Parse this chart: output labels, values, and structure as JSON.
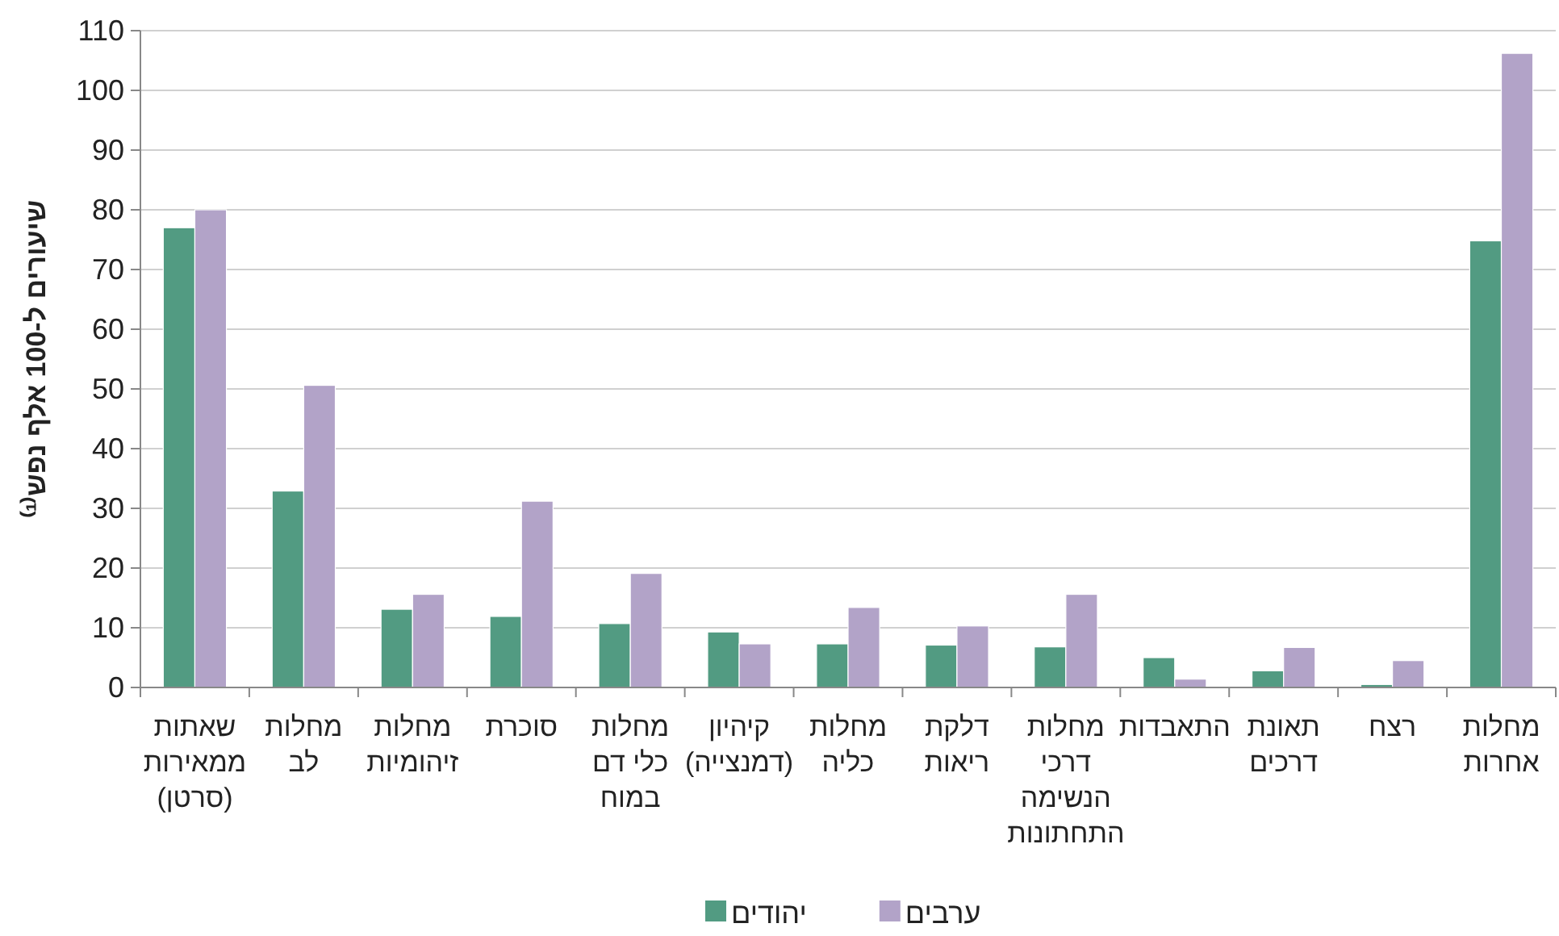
{
  "chart_data": {
    "type": "bar",
    "ylabel": "שיעורים ל-100 אלף נפש⁽¹⁾",
    "categories": [
      "שאתות\nממאירות\n(סרטן)",
      "מחלות\nלב",
      "מחלות\nזיהומיות",
      "סוכרת",
      "מחלות\nכלי דם\nבמוח",
      "קיהיון\n(דמנצייה)",
      "מחלות\nכליה",
      "דלקת\nריאות",
      "מחלות\nדרכי\nהנשימה\nהתחתונות",
      "התאבדות",
      "תאונת\nדרכים",
      "רצח",
      "מחלות\nאחרות"
    ],
    "series": [
      {
        "name": "יהודים",
        "color": "#529b82",
        "values": [
          77.0,
          32.9,
          13.1,
          11.9,
          10.7,
          9.3,
          7.3,
          7.1,
          6.8,
          5.0,
          2.8,
          0.5,
          74.8
        ]
      },
      {
        "name": "ערבים",
        "color": "#b2a3c8",
        "values": [
          80.0,
          50.6,
          15.6,
          31.2,
          19.1,
          7.3,
          13.4,
          10.3,
          15.6,
          1.4,
          6.7,
          4.5,
          106.2
        ]
      }
    ],
    "ylim": [
      0,
      110
    ],
    "yticks": [
      0,
      10,
      20,
      30,
      40,
      50,
      60,
      70,
      80,
      90,
      100,
      110
    ],
    "grid": "y",
    "legend": "bottom"
  }
}
